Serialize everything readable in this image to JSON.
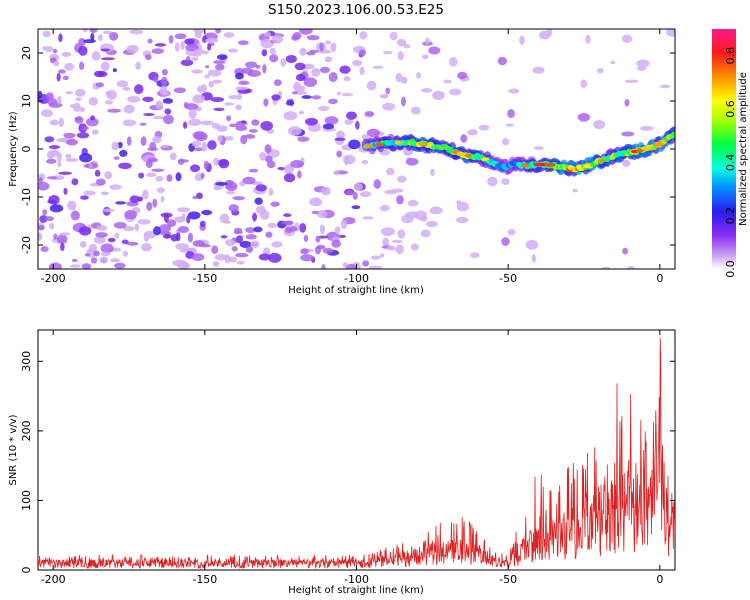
{
  "figure": {
    "title": "S150.2023.106.00.53.E25"
  },
  "chart_data": [
    {
      "type": "heatmap",
      "xlabel": "Height of straight line (km)",
      "ylabel": "Frequency (Hz)",
      "xlim": [
        -205,
        5
      ],
      "ylim": [
        -25,
        25
      ],
      "xticks": [
        -200,
        -150,
        -100,
        -50,
        0
      ],
      "yticks": [
        -20,
        -10,
        0,
        10,
        20
      ],
      "colorbar": {
        "label": "Normalized spectral amplitude",
        "range": [
          0,
          0.9
        ],
        "ticks": [
          "0.0",
          "0.2",
          "0.4",
          "0.6",
          "0.8"
        ],
        "colormap": "white-purple-blue-cyan-green-yellow-orange-red-pink"
      },
      "noise_region_x": [
        -205,
        -98
      ],
      "ridge": {
        "x": [
          -97,
          -92,
          -88,
          -84,
          -80,
          -76,
          -72,
          -68,
          -64,
          -60,
          -56,
          -52,
          -48,
          -44,
          -40,
          -36,
          -32,
          -28,
          -24,
          -20,
          -16,
          -12,
          -8,
          -4,
          0,
          3,
          5
        ],
        "y": [
          0.5,
          1.0,
          1.2,
          1.5,
          1.2,
          0.8,
          0.5,
          -0.5,
          -1.3,
          -1.6,
          -2.5,
          -4.0,
          -3.0,
          -3.5,
          -3.2,
          -3.3,
          -3.9,
          -4.2,
          -3.6,
          -2.6,
          -1.6,
          -0.8,
          -0.5,
          0.0,
          1.0,
          2.5,
          3.0
        ],
        "amp": [
          0.35,
          0.4,
          0.45,
          0.5,
          0.55,
          0.6,
          0.5,
          0.5,
          0.55,
          0.45,
          0.4,
          0.35,
          0.3,
          0.4,
          0.45,
          0.55,
          0.65,
          0.75,
          0.65,
          0.6,
          0.5,
          0.55,
          0.6,
          0.65,
          0.7,
          0.6,
          0.5
        ]
      }
    },
    {
      "type": "line",
      "xlabel": "Height of straight line (km)",
      "ylabel": "SNR (10 * v/v)",
      "xlim": [
        -205,
        5
      ],
      "ylim": [
        0,
        345
      ],
      "xticks": [
        -200,
        -150,
        -100,
        -50,
        0
      ],
      "yticks": [
        0,
        100,
        200,
        300
      ],
      "color": "#e02020",
      "envelope": {
        "x": [
          -205,
          -100,
          -95,
          -85,
          -75,
          -68,
          -62,
          -58,
          -54,
          -50,
          -47,
          -44,
          -40,
          -35,
          -30,
          -25,
          -20,
          -15,
          -10,
          -5,
          -2,
          0,
          2,
          5
        ],
        "mean": [
          10,
          10,
          12,
          18,
          25,
          30,
          28,
          20,
          12,
          10,
          20,
          35,
          45,
          50,
          55,
          65,
          75,
          85,
          95,
          100,
          110,
          150,
          80,
          70
        ],
        "peak": [
          22,
          22,
          26,
          40,
          60,
          82,
          70,
          45,
          30,
          22,
          60,
          130,
          155,
          130,
          160,
          170,
          180,
          280,
          260,
          210,
          230,
          345,
          160,
          120
        ]
      }
    }
  ]
}
